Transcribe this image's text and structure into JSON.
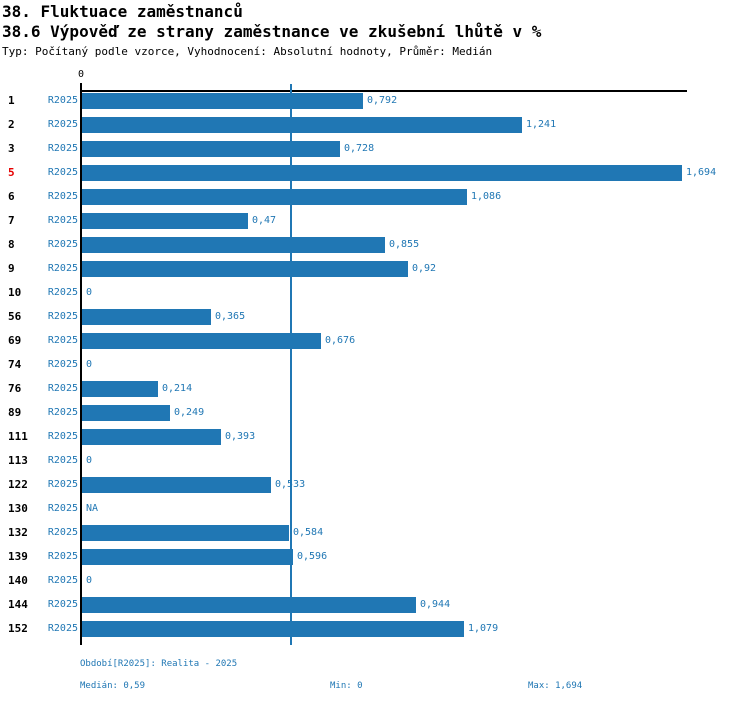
{
  "header": {
    "title_line1": "38. Fluktuace zaměstnanců",
    "title_line2": "38.6 Výpověď ze strany zaměstnance ve zkušební lhůtě v %",
    "subtitle": "Typ: Počítaný podle vzorce, Vyhodnocení: Absolutní hodnoty, Průměr: Medián"
  },
  "chart_data": {
    "type": "bar",
    "orientation": "horizontal",
    "title": "38.6 Výpověď ze strany zaměstnance ve zkušební lhůtě v %",
    "x_axis": {
      "zero_label": "0",
      "xlim": [
        0,
        1.85
      ],
      "grid": false
    },
    "legend": false,
    "series_label": "R2025",
    "categories": [
      "1",
      "2",
      "3",
      "5",
      "6",
      "7",
      "8",
      "9",
      "10",
      "56",
      "69",
      "74",
      "76",
      "89",
      "111",
      "113",
      "122",
      "130",
      "132",
      "139",
      "140",
      "144",
      "152"
    ],
    "highlighted_category": "5",
    "values": [
      0.792,
      1.241,
      0.728,
      1.694,
      1.086,
      0.47,
      0.855,
      0.92,
      0,
      0.365,
      0.676,
      0,
      0.214,
      0.249,
      0.393,
      0,
      0.533,
      null,
      0.584,
      0.596,
      0,
      0.944,
      1.079
    ],
    "value_labels": [
      "0,792",
      "1,241",
      "0,728",
      "1,694",
      "1,086",
      "0,47",
      "0,855",
      "0,92",
      "0",
      "0,365",
      "0,676",
      "0",
      "0,214",
      "0,249",
      "0,393",
      "0",
      "0,533",
      "NA",
      "0,584",
      "0,596",
      "0",
      "0,944",
      "1,079"
    ],
    "median_value": 0.59,
    "median_line": true,
    "min_value": 0,
    "max_value": 1.694
  },
  "footer": {
    "period": "Období[R2025]: Realita - 2025",
    "median": "Medián: 0,59",
    "min": "Min: 0",
    "max": "Max: 1,694"
  },
  "colors": {
    "bar": "#2077b4",
    "blue_text": "#2077b4",
    "highlight_red": "#e60000",
    "axis": "#000000"
  }
}
